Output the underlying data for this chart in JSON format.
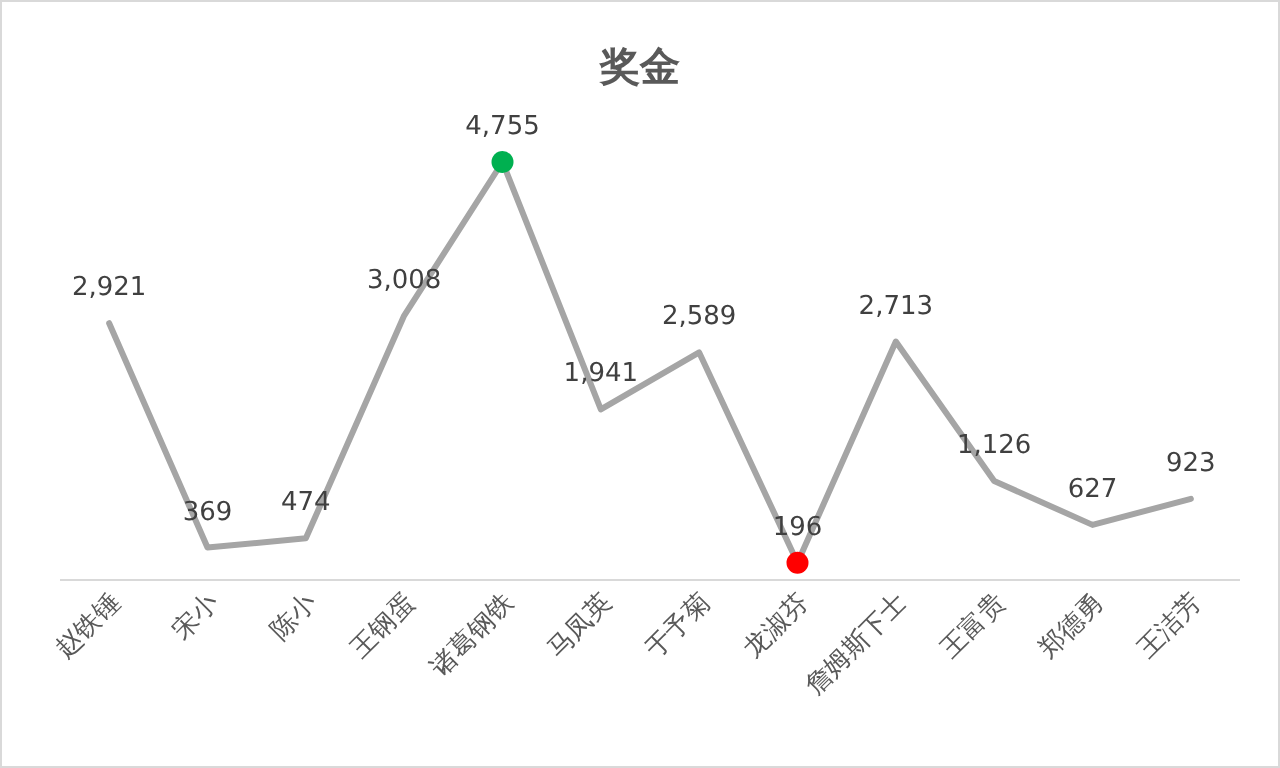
{
  "chart_data": {
    "type": "line",
    "title": "奖金",
    "categories": [
      "赵铁锤",
      "宋小",
      "陈小",
      "王钢蛋",
      "诸葛钢铁",
      "马凤英",
      "于予菊",
      "龙淑芬",
      "詹姆斯下士",
      "王富贵",
      "郑德勇",
      "王洁芳"
    ],
    "series": [
      {
        "color": "#a5a5a5",
        "values": [
          2921,
          369,
          474,
          3008,
          4755,
          1941,
          2589,
          196,
          2713,
          1126,
          627,
          923
        ],
        "value_labels": [
          "2,921",
          "369",
          "474",
          "3,008",
          "4,755",
          "1,941",
          "2,589",
          "196",
          "2,713",
          "1,126",
          "627",
          "923"
        ]
      },
      {
        "type": "scatter",
        "marker": "circle",
        "color": "#00b050",
        "x": [
          "诸葛钢铁"
        ],
        "values": [
          4755
        ]
      },
      {
        "type": "scatter",
        "marker": "circle",
        "color": "#ff0000",
        "x": [
          "龙淑芬"
        ],
        "values": [
          196
        ]
      }
    ]
  }
}
